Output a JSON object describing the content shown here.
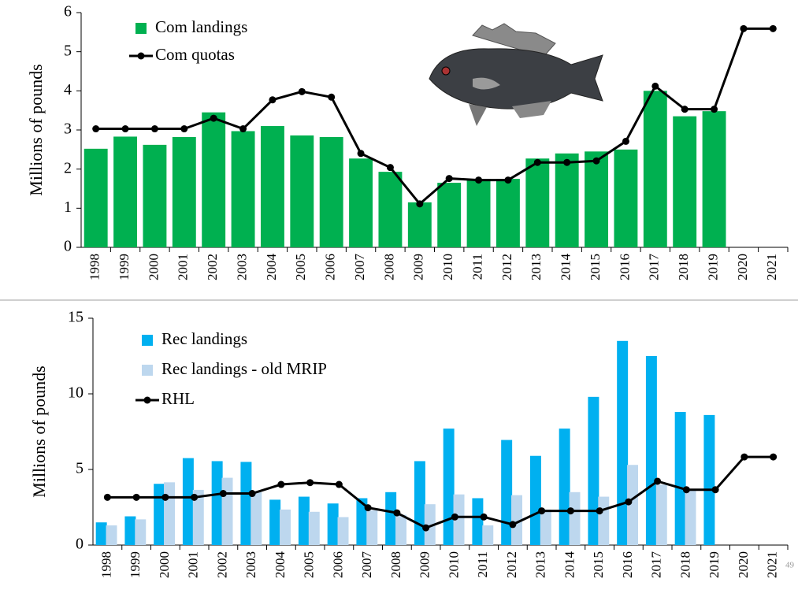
{
  "chart_data": [
    {
      "type": "bar_line",
      "y_label": "Millions of pounds",
      "categories": [
        "1998",
        "1999",
        "2000",
        "2001",
        "2002",
        "2003",
        "2004",
        "2005",
        "2006",
        "2007",
        "2008",
        "2009",
        "2010",
        "2011",
        "2012",
        "2013",
        "2014",
        "2015",
        "2016",
        "2017",
        "2018",
        "2019",
        "2020",
        "2021"
      ],
      "series": [
        {
          "name": "Com landings",
          "style": "bar",
          "color": "#00b050",
          "values": [
            2.52,
            2.83,
            2.62,
            2.82,
            3.45,
            2.97,
            3.1,
            2.86,
            2.82,
            2.27,
            1.93,
            1.15,
            1.65,
            1.75,
            1.75,
            2.27,
            2.4,
            2.45,
            2.5,
            4.0,
            3.35,
            3.48,
            null,
            null
          ]
        },
        {
          "name": "Com quotas",
          "style": "line",
          "color": "#000000",
          "values": [
            3.03,
            3.03,
            3.03,
            3.03,
            3.3,
            3.03,
            3.77,
            3.98,
            3.84,
            2.4,
            2.04,
            1.11,
            1.76,
            1.72,
            1.72,
            2.17,
            2.17,
            2.21,
            2.71,
            4.12,
            3.53,
            3.53,
            5.59,
            5.59
          ]
        }
      ],
      "ylim": [
        0,
        6
      ],
      "yticks": [
        0,
        1,
        2,
        3,
        4,
        5,
        6
      ]
    },
    {
      "type": "bar_line",
      "y_label": "Millions of pounds",
      "categories": [
        "1998",
        "1999",
        "2000",
        "2001",
        "2002",
        "2003",
        "2004",
        "2005",
        "2006",
        "2007",
        "2008",
        "2009",
        "2010",
        "2011",
        "2012",
        "2013",
        "2014",
        "2015",
        "2016",
        "2017",
        "2018",
        "2019",
        "2020",
        "2021"
      ],
      "series": [
        {
          "name": "Rec landings",
          "style": "bar",
          "color": "#00b0f0",
          "values": [
            1.5,
            1.9,
            4.05,
            5.75,
            5.55,
            5.5,
            3.0,
            3.2,
            2.75,
            3.1,
            3.5,
            5.55,
            7.7,
            3.1,
            6.95,
            5.9,
            7.7,
            9.8,
            13.5,
            12.5,
            8.8,
            8.6,
            null,
            null
          ]
        },
        {
          "name": "Rec landings - old MRIP",
          "style": "bar",
          "color": "#bdd7ee",
          "values": [
            1.3,
            1.7,
            4.15,
            3.65,
            4.45,
            3.5,
            2.35,
            2.2,
            1.85,
            2.3,
            2.0,
            2.7,
            3.35,
            1.3,
            3.3,
            2.35,
            3.5,
            3.2,
            5.3,
            4.0,
            3.6,
            null,
            null,
            null
          ]
        },
        {
          "name": "RHL",
          "style": "line",
          "color": "#000000",
          "values": [
            3.16,
            3.16,
            3.16,
            3.16,
            3.41,
            3.41,
            4.01,
            4.13,
            4.01,
            2.47,
            2.13,
            1.14,
            1.86,
            1.86,
            1.36,
            2.26,
            2.26,
            2.26,
            2.86,
            4.22,
            3.66,
            3.66,
            5.83,
            5.83
          ]
        }
      ],
      "ylim": [
        0,
        15
      ],
      "yticks": [
        0,
        5,
        10,
        15
      ]
    }
  ],
  "page_number": "49"
}
